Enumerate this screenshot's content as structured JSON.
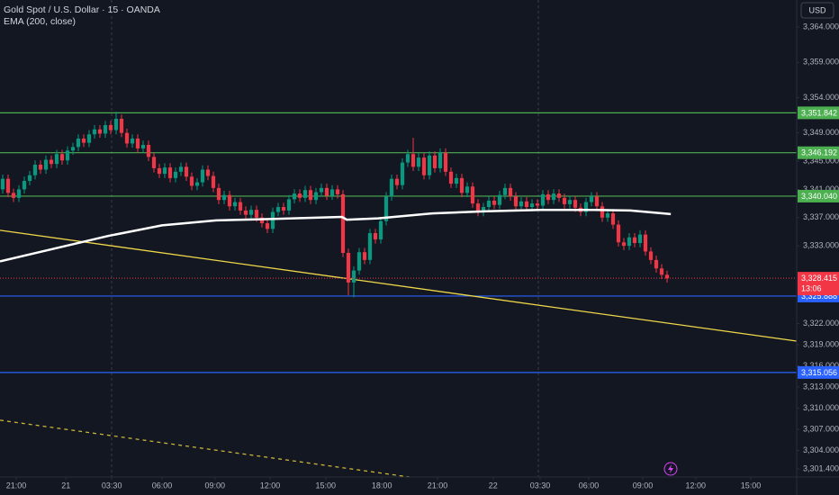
{
  "chart_data": {
    "type": "candlestick",
    "title": "Gold Spot / U.S. Dollar · 15 · OANDA",
    "indicator": "EMA (200, close)",
    "currency": "USD",
    "up_color": "#089981",
    "down_color": "#f23645",
    "xlim": [
      -0.5,
      147
    ],
    "ylim": [
      3300.25,
      3367.83
    ],
    "xticks": [
      {
        "value": 2.5,
        "label": "21:00"
      },
      {
        "value": 11.7,
        "label": "21"
      },
      {
        "value": 20.2,
        "label": "03:30"
      },
      {
        "value": 29.5,
        "label": "06:00"
      },
      {
        "value": 39.3,
        "label": "09:00"
      },
      {
        "value": 49.5,
        "label": "12:00"
      },
      {
        "value": 59.8,
        "label": "15:00"
      },
      {
        "value": 70.2,
        "label": "18:00"
      },
      {
        "value": 80.5,
        "label": "21:00"
      },
      {
        "value": 90.8,
        "label": "22"
      },
      {
        "value": 99.5,
        "label": "03:30"
      },
      {
        "value": 108.5,
        "label": "06:00"
      },
      {
        "value": 118.5,
        "label": "09:00"
      },
      {
        "value": 128.3,
        "label": "12:00"
      },
      {
        "value": 138.5,
        "label": "15:00"
      }
    ],
    "yticks": [
      {
        "value": 3364,
        "label": "3,364.000"
      },
      {
        "value": 3359,
        "label": "3,359.000"
      },
      {
        "value": 3354,
        "label": "3,354.000"
      },
      {
        "value": 3349,
        "label": "3,349.000"
      },
      {
        "value": 3345,
        "label": "3,345.000"
      },
      {
        "value": 3341,
        "label": "3,341.000"
      },
      {
        "value": 3337,
        "label": "3,337.000"
      },
      {
        "value": 3333,
        "label": "3,333.000"
      },
      {
        "value": 3322,
        "label": "3,322.000"
      },
      {
        "value": 3319,
        "label": "3,319.000"
      },
      {
        "value": 3316,
        "label": "3,316.000"
      },
      {
        "value": 3313,
        "label": "3,313.000"
      },
      {
        "value": 3310,
        "label": "3,310.000"
      },
      {
        "value": 3307,
        "label": "3,307.000"
      },
      {
        "value": 3304,
        "label": "3,304.000"
      },
      {
        "value": 3301.4,
        "label": "3,301.400"
      }
    ],
    "candles": [
      [
        3341.0,
        3343.1,
        3340.4,
        3342.5
      ],
      [
        3342.5,
        3343.1,
        3339.9,
        3340.5
      ],
      [
        3340.5,
        3341.1,
        3339.2,
        3339.8
      ],
      [
        3339.8,
        3341.6,
        3339.2,
        3341.0
      ],
      [
        3341.0,
        3342.8,
        3340.4,
        3342.2
      ],
      [
        3342.2,
        3343.6,
        3341.6,
        3343.0
      ],
      [
        3343.0,
        3345.1,
        3342.4,
        3344.5
      ],
      [
        3344.5,
        3345.1,
        3343.2,
        3343.8
      ],
      [
        3343.8,
        3345.8,
        3343.2,
        3345.2
      ],
      [
        3345.2,
        3345.8,
        3344.0,
        3344.6
      ],
      [
        3344.6,
        3346.6,
        3344.0,
        3346.0
      ],
      [
        3346.0,
        3346.6,
        3344.5,
        3345.1
      ],
      [
        3345.1,
        3347.1,
        3344.5,
        3346.5
      ],
      [
        3346.5,
        3347.6,
        3345.9,
        3347.0
      ],
      [
        3347.0,
        3348.8,
        3346.4,
        3348.2
      ],
      [
        3348.2,
        3348.8,
        3347.0,
        3347.6
      ],
      [
        3347.6,
        3349.4,
        3347.0,
        3348.8
      ],
      [
        3348.8,
        3350.1,
        3348.2,
        3349.5
      ],
      [
        3349.5,
        3350.1,
        3348.3,
        3348.9
      ],
      [
        3348.9,
        3350.7,
        3348.3,
        3350.1
      ],
      [
        3350.1,
        3350.7,
        3348.8,
        3349.4
      ],
      [
        3349.4,
        3352.0,
        3348.8,
        3351.0
      ],
      [
        3351.0,
        3351.6,
        3348.4,
        3349.0
      ],
      [
        3349.0,
        3349.6,
        3346.9,
        3347.5
      ],
      [
        3347.5,
        3348.8,
        3346.9,
        3348.2
      ],
      [
        3348.2,
        3348.8,
        3346.2,
        3346.8
      ],
      [
        3346.8,
        3347.9,
        3346.2,
        3347.3
      ],
      [
        3347.3,
        3347.9,
        3345.0,
        3345.6
      ],
      [
        3345.6,
        3346.2,
        3343.4,
        3344.0
      ],
      [
        3344.0,
        3344.6,
        3342.6,
        3343.2
      ],
      [
        3343.2,
        3344.7,
        3342.6,
        3344.1
      ],
      [
        3344.1,
        3344.7,
        3342.0,
        3342.6
      ],
      [
        3342.6,
        3344.1,
        3342.0,
        3343.5
      ],
      [
        3343.5,
        3344.8,
        3342.9,
        3344.2
      ],
      [
        3344.2,
        3344.8,
        3342.2,
        3342.8
      ],
      [
        3342.8,
        3343.4,
        3340.9,
        3341.5
      ],
      [
        3341.5,
        3342.6,
        3340.9,
        3342.0
      ],
      [
        3342.0,
        3344.4,
        3341.4,
        3343.8
      ],
      [
        3343.8,
        3344.4,
        3342.3,
        3342.9
      ],
      [
        3342.9,
        3343.5,
        3340.6,
        3341.2
      ],
      [
        3341.2,
        3341.8,
        3338.9,
        3339.5
      ],
      [
        3339.5,
        3340.8,
        3338.9,
        3340.2
      ],
      [
        3340.2,
        3340.8,
        3338.0,
        3338.6
      ],
      [
        3338.6,
        3339.8,
        3338.0,
        3339.2
      ],
      [
        3339.2,
        3339.8,
        3337.4,
        3338.0
      ],
      [
        3338.0,
        3338.6,
        3336.8,
        3337.4
      ],
      [
        3337.4,
        3338.7,
        3336.8,
        3338.1
      ],
      [
        3338.1,
        3338.7,
        3336.4,
        3337.0
      ],
      [
        3337.0,
        3337.6,
        3335.6,
        3336.2
      ],
      [
        3336.2,
        3336.8,
        3334.8,
        3335.4
      ],
      [
        3335.4,
        3338.4,
        3334.8,
        3337.8
      ],
      [
        3337.8,
        3339.1,
        3337.2,
        3338.5
      ],
      [
        3338.5,
        3339.1,
        3337.4,
        3338.0
      ],
      [
        3338.0,
        3340.2,
        3337.4,
        3339.6
      ],
      [
        3339.6,
        3341.0,
        3339.0,
        3340.4
      ],
      [
        3340.4,
        3341.0,
        3339.2,
        3339.8
      ],
      [
        3339.8,
        3341.5,
        3339.2,
        3340.9
      ],
      [
        3340.9,
        3341.5,
        3338.9,
        3339.5
      ],
      [
        3339.5,
        3341.2,
        3338.9,
        3340.6
      ],
      [
        3340.6,
        3341.8,
        3340.0,
        3341.2
      ],
      [
        3341.2,
        3341.8,
        3339.5,
        3340.1
      ],
      [
        3340.1,
        3341.6,
        3339.5,
        3341.0
      ],
      [
        3341.0,
        3341.6,
        3339.7,
        3340.3
      ],
      [
        3340.3,
        3340.9,
        3331.4,
        3332.0
      ],
      [
        3332.0,
        3332.6,
        3326.0,
        3327.8
      ],
      [
        3327.8,
        3330.1,
        3325.7,
        3329.5
      ],
      [
        3329.5,
        3332.7,
        3328.9,
        3332.1
      ],
      [
        3332.1,
        3332.7,
        3330.4,
        3331.0
      ],
      [
        3331.0,
        3335.4,
        3330.4,
        3334.8
      ],
      [
        3334.8,
        3335.4,
        3333.3,
        3333.9
      ],
      [
        3333.9,
        3337.1,
        3333.3,
        3336.5
      ],
      [
        3336.5,
        3340.6,
        3335.9,
        3340.0
      ],
      [
        3340.0,
        3343.1,
        3339.4,
        3342.5
      ],
      [
        3342.5,
        3343.1,
        3341.0,
        3341.6
      ],
      [
        3341.6,
        3345.4,
        3341.0,
        3344.8
      ],
      [
        3344.8,
        3346.6,
        3344.2,
        3346.0
      ],
      [
        3346.0,
        3348.3,
        3343.6,
        3344.2
      ],
      [
        3344.2,
        3346.1,
        3343.6,
        3345.5
      ],
      [
        3345.5,
        3346.1,
        3342.4,
        3343.0
      ],
      [
        3343.0,
        3346.4,
        3342.4,
        3345.8
      ],
      [
        3345.8,
        3346.4,
        3343.4,
        3344.0
      ],
      [
        3344.0,
        3346.8,
        3343.4,
        3346.2
      ],
      [
        3346.2,
        3346.8,
        3342.9,
        3343.5
      ],
      [
        3343.5,
        3344.1,
        3341.2,
        3341.8
      ],
      [
        3341.8,
        3343.2,
        3341.2,
        3342.6
      ],
      [
        3342.6,
        3343.2,
        3339.9,
        3340.5
      ],
      [
        3340.5,
        3342.0,
        3339.9,
        3341.4
      ],
      [
        3341.4,
        3342.0,
        3338.4,
        3339.0
      ],
      [
        3339.0,
        3339.6,
        3337.2,
        3337.8
      ],
      [
        3337.8,
        3339.1,
        3337.2,
        3338.5
      ],
      [
        3338.5,
        3340.0,
        3337.9,
        3339.4
      ],
      [
        3339.4,
        3340.0,
        3338.2,
        3338.8
      ],
      [
        3338.8,
        3340.8,
        3338.2,
        3340.2
      ],
      [
        3340.2,
        3341.8,
        3339.6,
        3341.2
      ],
      [
        3341.2,
        3341.8,
        3339.4,
        3340.0
      ],
      [
        3340.0,
        3340.6,
        3338.0,
        3338.6
      ],
      [
        3338.6,
        3339.9,
        3338.0,
        3339.3
      ],
      [
        3339.3,
        3339.9,
        3337.9,
        3338.5
      ],
      [
        3338.5,
        3339.6,
        3337.9,
        3339.0
      ],
      [
        3339.0,
        3339.6,
        3338.1,
        3338.7
      ],
      [
        3338.7,
        3340.9,
        3338.1,
        3340.3
      ],
      [
        3340.3,
        3340.9,
        3338.9,
        3339.5
      ],
      [
        3339.5,
        3341.0,
        3338.9,
        3340.4
      ],
      [
        3340.4,
        3341.0,
        3339.2,
        3339.8
      ],
      [
        3339.8,
        3340.4,
        3338.3,
        3338.9
      ],
      [
        3338.9,
        3340.1,
        3338.3,
        3339.5
      ],
      [
        3339.5,
        3340.1,
        3337.8,
        3338.4
      ],
      [
        3338.4,
        3339.0,
        3337.2,
        3337.8
      ],
      [
        3337.8,
        3339.8,
        3337.2,
        3339.2
      ],
      [
        3339.2,
        3340.6,
        3338.6,
        3340.0
      ],
      [
        3340.0,
        3340.6,
        3338.0,
        3338.6
      ],
      [
        3338.6,
        3339.2,
        3336.4,
        3337.0
      ],
      [
        3337.0,
        3338.2,
        3336.4,
        3337.6
      ],
      [
        3337.6,
        3338.2,
        3335.4,
        3336.0
      ],
      [
        3336.0,
        3336.6,
        3332.9,
        3333.5
      ],
      [
        3333.5,
        3334.1,
        3332.4,
        3333.0
      ],
      [
        3333.0,
        3334.8,
        3332.4,
        3334.2
      ],
      [
        3334.2,
        3334.8,
        3332.8,
        3333.4
      ],
      [
        3333.4,
        3335.2,
        3332.8,
        3334.6
      ],
      [
        3334.6,
        3335.2,
        3331.6,
        3332.2
      ],
      [
        3332.2,
        3332.8,
        3330.4,
        3331.0
      ],
      [
        3331.0,
        3331.6,
        3329.2,
        3329.8
      ],
      [
        3329.8,
        3330.4,
        3328.3,
        3328.9
      ],
      [
        3328.9,
        3329.5,
        3327.8,
        3328.4
      ]
    ],
    "ema": {
      "color": "#ffffff",
      "x": [
        -0.5,
        9.5,
        19.5,
        29.5,
        39.5,
        49.5,
        62.8,
        63.7,
        69.5,
        79.5,
        89.5,
        99.5,
        109.5,
        116.2,
        123.7
      ],
      "values": [
        3330.8,
        3332.6,
        3334.4,
        3335.9,
        3336.6,
        3336.8,
        3337.1,
        3336.7,
        3336.9,
        3337.6,
        3337.9,
        3338.1,
        3338.1,
        3338.0,
        3337.5
      ]
    },
    "trendlines": [
      {
        "color": "#f0d84a",
        "dashed": false,
        "x": [
          -0.5,
          147
        ],
        "values": [
          3335.2,
          3319.5
        ]
      },
      {
        "color": "#c9b43a",
        "dashed": true,
        "x": [
          -0.5,
          75.3
        ],
        "values": [
          3308.3,
          3300.25
        ]
      }
    ],
    "levels": [
      {
        "value": 3351.842,
        "label": "3,351.842",
        "color": "#4caf50"
      },
      {
        "value": 3346.192,
        "label": "3,346.192",
        "color": "#4caf50"
      },
      {
        "value": 3340.04,
        "label": "3,340.040",
        "color": "#4caf50"
      },
      {
        "value": 3325.888,
        "label": "3,325.888",
        "color": "#2962ff"
      },
      {
        "value": 3315.056,
        "label": "3,315.056",
        "color": "#2962ff"
      }
    ],
    "last_price": {
      "value": 3328.415,
      "label": "3,328.415",
      "countdown": "13:06",
      "color": "#f23645"
    }
  }
}
